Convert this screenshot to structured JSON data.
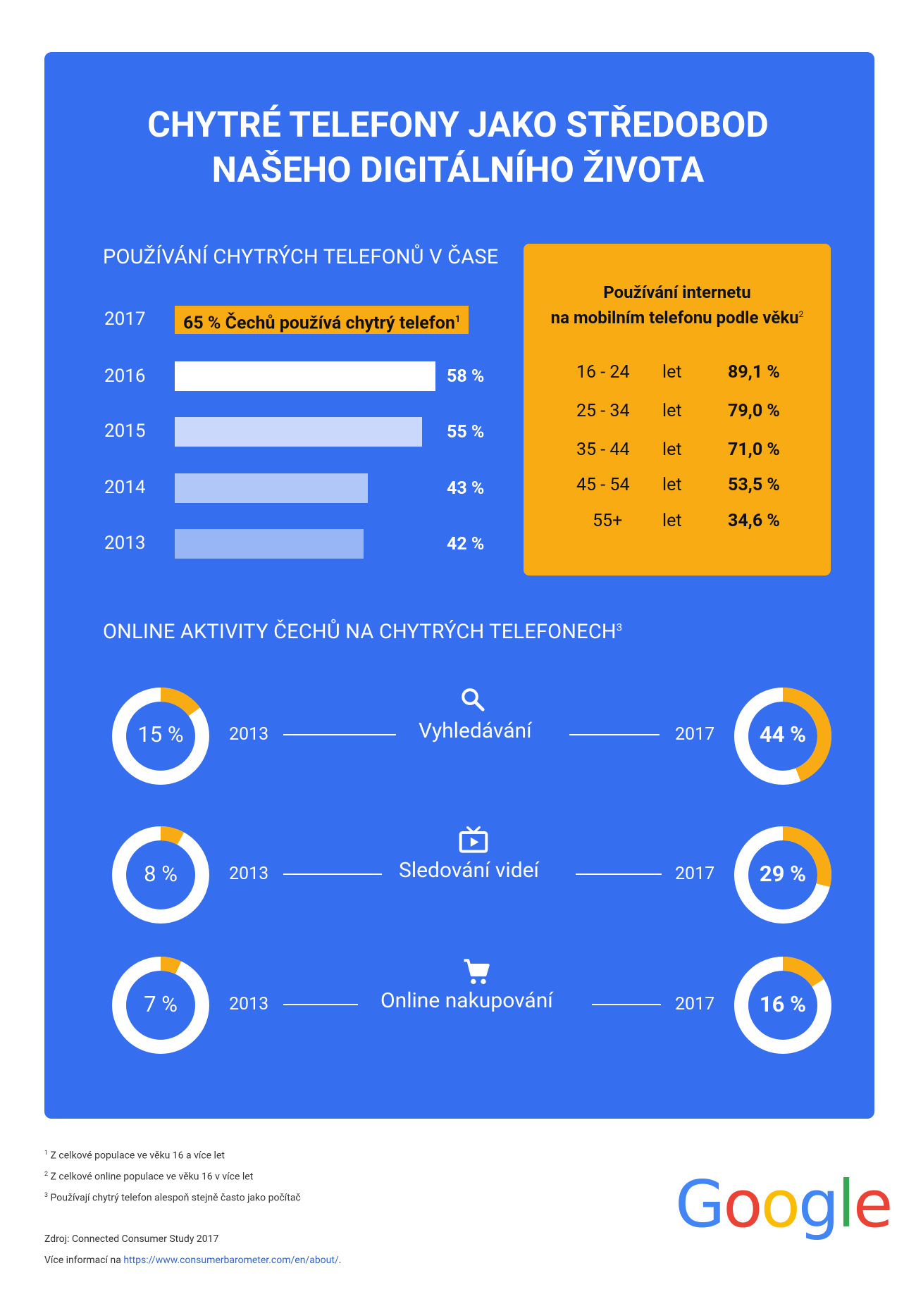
{
  "title_line1": "CHYTRÉ TELEFONY JAKO STŘEDOBOD",
  "title_line2": "NAŠEHO DIGITÁLNÍHO ŽIVOTA",
  "usage_heading": "POUŽÍVÁNÍ CHYTRÝCH TELEFONŮ V ČASE",
  "highlight_text": "65 % Čechů používá chytrý telefon",
  "highlight_sup": "1",
  "mobile_box": {
    "title_line1": "Používání internetu",
    "title_line2": "na mobilním telefonu podle věku",
    "title_sup": "2",
    "rows": [
      {
        "age": "16 - 24",
        "unit": "let",
        "value": "89,1 %"
      },
      {
        "age": "25 - 34",
        "unit": "let",
        "value": "79,0 %"
      },
      {
        "age": "35 - 44",
        "unit": "let",
        "value": "71,0 %"
      },
      {
        "age": "45 - 54",
        "unit": "let",
        "value": "53,5 %"
      },
      {
        "age": "55+",
        "unit": "let",
        "value": "34,6 %"
      }
    ]
  },
  "activities_heading": "ONLINE AKTIVITY ČECHŮ NA CHYTRÝCH TELEFONECH",
  "activities_sup": "3",
  "activities": [
    {
      "label": "Vyhledávání",
      "icon": "search-icon",
      "year_start": "2013",
      "year_end": "2017",
      "value_2013": "15 %",
      "value_2017": "44 %"
    },
    {
      "label": "Sledování videí",
      "icon": "tv-play-icon",
      "year_start": "2013",
      "year_end": "2017",
      "value_2013": "8 %",
      "value_2017": "29 %"
    },
    {
      "label": "Online nakupování",
      "icon": "shopping-cart-icon",
      "year_start": "2013",
      "year_end": "2017",
      "value_2013": "7 %",
      "value_2017": "16 %"
    }
  ],
  "footnotes": [
    {
      "sup": "1",
      "text": "Z celkové populace ve věku 16 a více let"
    },
    {
      "sup": "2",
      "text": "Z celkové online populace ve věku 16 v více let"
    },
    {
      "sup": "3",
      "text": "Používají chytrý telefon alespoň stejně často jako počítač"
    }
  ],
  "source": "Zdroj: Connected Consumer Study 2017",
  "more_info_prefix": "Více informací na ",
  "more_info_link": "https://www.consumerbarometer.com/en/about/",
  "more_info_suffix": ".",
  "logo_text": "Google",
  "colors": {
    "panel": "#366ef0",
    "accent": "#f8ab13",
    "bar_2016": "#ffffff",
    "bar_2015": "#c9d8fb",
    "bar_2014": "#b0c7f8",
    "bar_2013": "#98b6f6",
    "google_blue": "#4285f4",
    "google_red": "#ea4335",
    "google_yellow": "#fbbc05",
    "google_green": "#34a853"
  },
  "chart_data": [
    {
      "type": "bar",
      "title": "POUŽÍVÁNÍ CHYTRÝCH TELEFONŮ V ČASE",
      "categories": [
        "2017",
        "2016",
        "2015",
        "2014",
        "2013"
      ],
      "values": [
        65,
        58,
        55,
        43,
        42
      ],
      "value_labels": [
        "65 %",
        "58 %",
        "55 %",
        "43 %",
        "42 %"
      ],
      "ylim": [
        0,
        100
      ]
    },
    {
      "type": "pie",
      "title": "ONLINE AKTIVITY ČECHŮ NA CHYTRÝCH TELEFONECH",
      "categories": [
        "Vyhledávání",
        "Sledování videí",
        "Online nakupování"
      ],
      "series": [
        {
          "name": "2013",
          "values": [
            15,
            8,
            7
          ]
        },
        {
          "name": "2017",
          "values": [
            44,
            29,
            16
          ]
        }
      ]
    }
  ]
}
